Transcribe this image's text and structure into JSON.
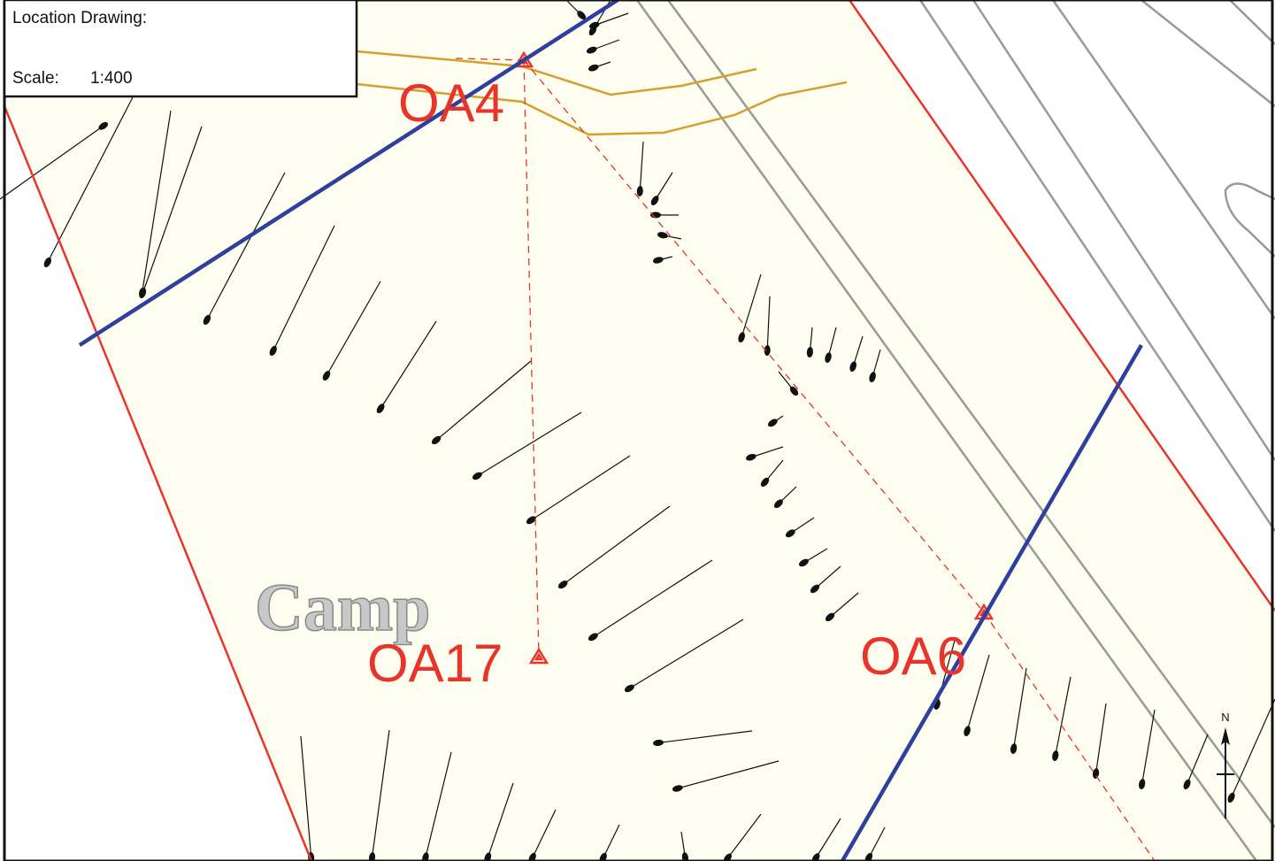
{
  "header": {
    "title": "Location Drawing:",
    "scale_label": "Scale:",
    "scale_value": "1:400"
  },
  "labels": {
    "camp": "Camp",
    "north": "N"
  },
  "points": [
    {
      "label": "OA4"
    },
    {
      "label": "OA17"
    },
    {
      "label": "OA6"
    }
  ]
}
